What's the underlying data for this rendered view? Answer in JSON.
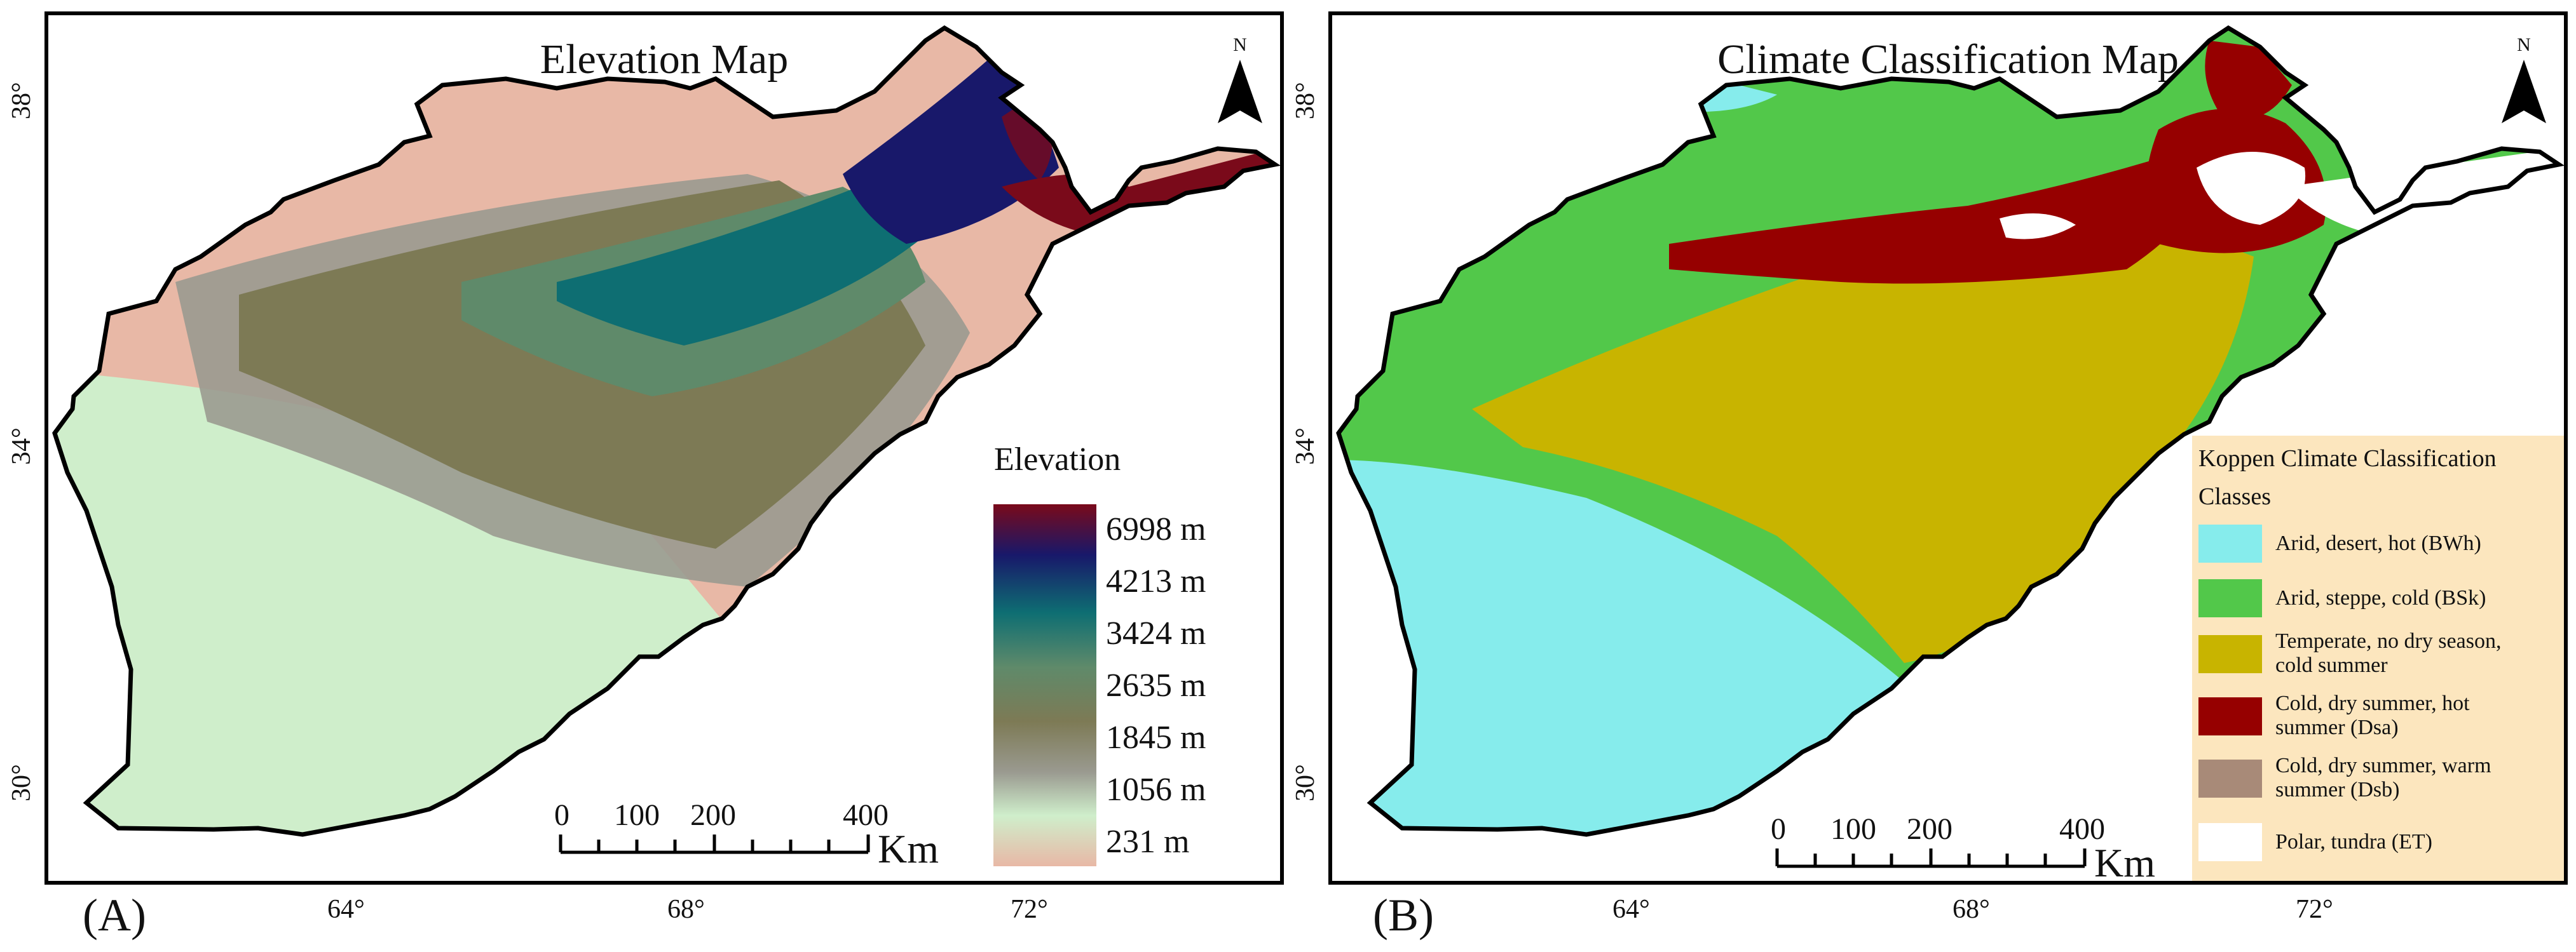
{
  "panel_a": {
    "title": "Elevation Map",
    "label": "(A)",
    "north": "N",
    "legend_title": "Elevation",
    "ramp_labels": [
      "6998 m",
      "4213 m",
      "3424 m",
      "2635 m",
      "1845 m",
      "1056 m",
      "231 m"
    ],
    "ramp_colors": [
      "#7a0a1a",
      "#18186a",
      "#0e6e72",
      "#5f8a6a",
      "#7d7a55",
      "#9a9a90",
      "#cfeecb",
      "#e8b8a6"
    ]
  },
  "panel_b": {
    "title": "Climate Classification Map",
    "label": "(B)",
    "north": "N",
    "legend_title": "Koppen Climate Classification",
    "legend_sub": "Classes",
    "classes": [
      {
        "label_1": "Arid, desert, hot (BWh)",
        "label_2": "",
        "color": "#86ecec"
      },
      {
        "label_1": "Arid, steppe, cold (BSk)",
        "label_2": "",
        "color": "#52c84a"
      },
      {
        "label_1": "Temperate, no dry season,",
        "label_2": "cold summer",
        "color": "#c8b400"
      },
      {
        "label_1": "Cold, dry summer, hot",
        "label_2": "summer (Dsa)",
        "color": "#960000"
      },
      {
        "label_1": "Cold, dry summer, warm",
        "label_2": "summer (Dsb)",
        "color": "#a88a78"
      },
      {
        "label_1": "Polar, tundra (ET)",
        "label_2": "",
        "color": "#ffffff"
      }
    ]
  },
  "axes": {
    "x_ticks": [
      "64°",
      "68°",
      "72°"
    ],
    "y_ticks": [
      "38°",
      "34°",
      "30°"
    ]
  },
  "scalebar": {
    "numbers": [
      "0",
      "100",
      "200",
      "400"
    ],
    "unit": "Km"
  },
  "colors": {
    "desert_low": "#e8b8a6",
    "lowland": "#cfeecb",
    "mid": "#7d7a55",
    "high": "#0e6e72",
    "peak": "#18186a",
    "summit": "#7a0a1a",
    "arid_hot": "#86ecec",
    "steppe": "#52c84a",
    "temperate": "#c8b400",
    "cold_hot": "#960000",
    "tundra": "#ffffff"
  }
}
